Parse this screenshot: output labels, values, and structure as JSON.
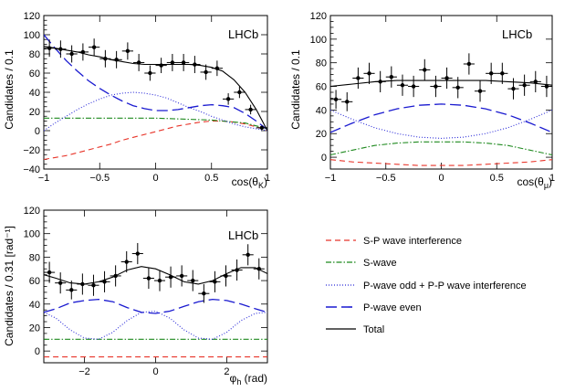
{
  "colors": {
    "sp_interference": "#e8352a",
    "s_wave": "#1f8a1f",
    "p_odd": "#2a2ad8",
    "p_even": "#1a1ad0",
    "total": "#000000",
    "data": "#000000"
  },
  "legend": {
    "sp": "S-P wave interference",
    "s": "S-wave",
    "podd": "P-wave odd + P-P wave interference",
    "peven": "P-wave even",
    "total": "Total"
  },
  "chart_data": [
    {
      "type": "line",
      "id": "costhetaK",
      "experiment_label": "LHCb",
      "ylabel": "Candidates / 0.1",
      "xlabel_main": "cos(θ",
      "xlabel_sub": "K",
      "xlabel_end": ")",
      "xlim": [
        -1,
        1
      ],
      "ylim": [
        -40,
        120
      ],
      "xticks": [
        -1,
        -0.5,
        0,
        0.5,
        1
      ],
      "xtick_labels": [
        "−1",
        "−0.5",
        "0",
        "0.5",
        "1"
      ],
      "yticks": [
        -40,
        -20,
        0,
        20,
        40,
        60,
        80,
        100,
        120
      ],
      "ytick_labels": [
        "−40",
        "−20",
        "0",
        "20",
        "40",
        "60",
        "80",
        "100",
        "120"
      ],
      "points": {
        "x": [
          -0.95,
          -0.85,
          -0.75,
          -0.65,
          -0.55,
          -0.45,
          -0.35,
          -0.25,
          -0.15,
          -0.05,
          0.05,
          0.15,
          0.25,
          0.35,
          0.45,
          0.55,
          0.65,
          0.75,
          0.85,
          0.95
        ],
        "y": [
          86,
          85,
          80,
          82,
          87,
          75,
          74,
          83,
          71,
          60,
          68,
          71,
          71,
          69,
          61,
          65,
          33,
          40,
          22,
          3
        ],
        "err": [
          9,
          9,
          9,
          9,
          9,
          9,
          9,
          9,
          9,
          8,
          8,
          9,
          9,
          9,
          8,
          8,
          6,
          6,
          5,
          2
        ]
      },
      "series": [
        {
          "name": "Total",
          "style": "total",
          "x": [
            -1,
            -0.9,
            -0.8,
            -0.7,
            -0.6,
            -0.5,
            -0.4,
            -0.3,
            -0.2,
            -0.1,
            0,
            0.1,
            0.2,
            0.3,
            0.4,
            0.5,
            0.6,
            0.7,
            0.8,
            0.9,
            1
          ],
          "y": [
            88,
            86,
            84,
            82,
            79,
            77,
            74,
            72,
            70,
            69,
            69,
            69,
            69,
            69,
            68,
            66,
            62,
            53,
            40,
            22,
            0
          ]
        },
        {
          "name": "P-wave even",
          "style": "peven",
          "x": [
            -1,
            -0.9,
            -0.8,
            -0.7,
            -0.6,
            -0.5,
            -0.4,
            -0.3,
            -0.2,
            -0.1,
            0,
            0.1,
            0.2,
            0.3,
            0.4,
            0.5,
            0.6,
            0.7,
            0.8,
            0.9,
            1
          ],
          "y": [
            100,
            86,
            73,
            62,
            52,
            44,
            37,
            31,
            26,
            23,
            21,
            21,
            22,
            24,
            26,
            27,
            26,
            24,
            18,
            10,
            1
          ]
        },
        {
          "name": "P-wave odd + P-P wave interference",
          "style": "podd",
          "x": [
            -1,
            -0.9,
            -0.8,
            -0.7,
            -0.6,
            -0.5,
            -0.4,
            -0.3,
            -0.2,
            -0.1,
            0,
            0.1,
            0.2,
            0.3,
            0.4,
            0.5,
            0.6,
            0.7,
            0.8,
            0.9,
            1
          ],
          "y": [
            0,
            8,
            15,
            22,
            28,
            33,
            37,
            39,
            40,
            39,
            37,
            34,
            29,
            24,
            20,
            15,
            11,
            7,
            4,
            2,
            0
          ]
        },
        {
          "name": "S-wave",
          "style": "s",
          "x": [
            -1,
            -0.5,
            0,
            0.5,
            0.8,
            1
          ],
          "y": [
            13,
            13,
            13,
            11,
            8,
            2
          ]
        },
        {
          "name": "S-P wave interference",
          "style": "sp",
          "x": [
            -1,
            -0.9,
            -0.8,
            -0.7,
            -0.6,
            -0.5,
            -0.4,
            -0.3,
            -0.2,
            -0.1,
            0,
            0.1,
            0.2,
            0.3,
            0.4,
            0.5,
            0.6,
            0.7,
            0.8,
            0.9,
            1
          ],
          "y": [
            -30,
            -28,
            -26,
            -23,
            -20,
            -17,
            -14,
            -10,
            -7,
            -4,
            -1,
            2,
            5,
            7,
            9,
            10,
            10,
            9,
            7,
            4,
            0
          ]
        }
      ]
    },
    {
      "type": "line",
      "id": "costhetamu",
      "experiment_label": "LHCb",
      "ylabel": "Candidates / 0.1",
      "xlabel_main": "cos(θ",
      "xlabel_sub": "μ",
      "xlabel_end": ")",
      "xlim": [
        -1,
        1
      ],
      "ylim": [
        -10,
        120
      ],
      "xticks": [
        -1,
        -0.5,
        0,
        0.5,
        1
      ],
      "xtick_labels": [
        "−1",
        "−0.5",
        "0",
        "0.5",
        "1"
      ],
      "yticks": [
        0,
        20,
        40,
        60,
        80,
        100,
        120
      ],
      "ytick_labels": [
        "0",
        "20",
        "40",
        "60",
        "80",
        "100",
        "120"
      ],
      "points": {
        "x": [
          -0.95,
          -0.85,
          -0.75,
          -0.65,
          -0.55,
          -0.45,
          -0.35,
          -0.25,
          -0.15,
          -0.05,
          0.05,
          0.15,
          0.25,
          0.35,
          0.45,
          0.55,
          0.65,
          0.75,
          0.85,
          0.95
        ],
        "y": [
          49,
          47,
          67,
          71,
          64,
          68,
          61,
          60,
          74,
          60,
          67,
          59,
          79,
          56,
          71,
          71,
          58,
          61,
          64,
          60
        ],
        "err": [
          8,
          8,
          9,
          9,
          9,
          9,
          9,
          9,
          9,
          9,
          9,
          9,
          9,
          9,
          9,
          9,
          9,
          9,
          9,
          9
        ]
      },
      "series": [
        {
          "name": "Total",
          "style": "total",
          "x": [
            -1,
            -0.8,
            -0.6,
            -0.4,
            -0.2,
            0,
            0.2,
            0.4,
            0.6,
            0.8,
            1
          ],
          "y": [
            60,
            62,
            64,
            65,
            65,
            65,
            65,
            65,
            64,
            63,
            61
          ]
        },
        {
          "name": "P-wave even",
          "style": "peven",
          "x": [
            -1,
            -0.8,
            -0.6,
            -0.4,
            -0.2,
            0,
            0.2,
            0.4,
            0.6,
            0.8,
            1
          ],
          "y": [
            21,
            29,
            36,
            41,
            44,
            45,
            44,
            41,
            36,
            29,
            21
          ]
        },
        {
          "name": "P-wave odd + P-P wave interference",
          "style": "podd",
          "x": [
            -1,
            -0.8,
            -0.6,
            -0.4,
            -0.2,
            0,
            0.2,
            0.4,
            0.6,
            0.8,
            1
          ],
          "y": [
            40,
            32,
            25,
            20,
            17,
            16,
            17,
            20,
            25,
            32,
            40
          ]
        },
        {
          "name": "S-wave",
          "style": "s",
          "x": [
            -1,
            -0.8,
            -0.6,
            -0.4,
            -0.2,
            0,
            0.2,
            0.4,
            0.6,
            0.8,
            1
          ],
          "y": [
            2,
            6,
            10,
            12,
            13,
            13,
            13,
            12,
            10,
            6,
            2
          ]
        },
        {
          "name": "S-P wave interference",
          "style": "sp",
          "x": [
            -1,
            -0.8,
            -0.6,
            -0.4,
            -0.2,
            0,
            0.2,
            0.4,
            0.6,
            0.8,
            1
          ],
          "y": [
            -2,
            -4,
            -5,
            -6,
            -7,
            -7,
            -7,
            -6,
            -5,
            -4,
            -2
          ]
        }
      ]
    },
    {
      "type": "line",
      "id": "phih",
      "experiment_label": "LHCb",
      "ylabel": "Candidates / 0.31 [rad⁻¹]",
      "xlabel_main": "φ",
      "xlabel_sub": "h",
      "xlabel_end": " (rad)",
      "xlim": [
        -3.14159,
        3.14159
      ],
      "ylim": [
        -10,
        120
      ],
      "xticks": [
        -2,
        0,
        2
      ],
      "xtick_labels": [
        "−2",
        "0",
        "2"
      ],
      "yticks": [
        0,
        20,
        40,
        60,
        80,
        100,
        120
      ],
      "ytick_labels": [
        "0",
        "20",
        "40",
        "60",
        "80",
        "100",
        "120"
      ],
      "points": {
        "x": [
          -2.985,
          -2.675,
          -2.365,
          -2.055,
          -1.745,
          -1.435,
          -1.125,
          -0.815,
          -0.505,
          -0.195,
          0.115,
          0.425,
          0.735,
          1.045,
          1.355,
          1.665,
          1.975,
          2.285,
          2.595,
          2.905
        ],
        "y": [
          67,
          58,
          52,
          57,
          56,
          59,
          64,
          76,
          83,
          62,
          60,
          63,
          64,
          60,
          49,
          59,
          64,
          69,
          82,
          70
        ],
        "err": [
          9,
          9,
          8,
          9,
          9,
          9,
          9,
          9,
          9,
          9,
          9,
          9,
          9,
          9,
          8,
          9,
          9,
          9,
          9,
          9
        ]
      },
      "series": [
        {
          "name": "Total",
          "style": "total",
          "x": [
            -3.14,
            -2.8,
            -2.4,
            -2.0,
            -1.6,
            -1.2,
            -0.8,
            -0.4,
            0.0,
            0.4,
            0.8,
            1.2,
            1.6,
            2.0,
            2.4,
            2.8,
            3.14
          ],
          "y": [
            65,
            62,
            58,
            57,
            59,
            63,
            69,
            72,
            70,
            65,
            59,
            57,
            60,
            66,
            71,
            71,
            66
          ]
        },
        {
          "name": "P-wave even",
          "style": "peven",
          "x": [
            -3.14,
            -2.8,
            -2.4,
            -2.0,
            -1.6,
            -1.2,
            -0.8,
            -0.4,
            0.0,
            0.4,
            0.8,
            1.2,
            1.6,
            2.0,
            2.4,
            2.8,
            3.14
          ],
          "y": [
            33,
            36,
            41,
            43,
            44,
            42,
            37,
            33,
            32,
            34,
            38,
            42,
            44,
            43,
            40,
            36,
            33
          ]
        },
        {
          "name": "P-wave odd + P-P wave interference",
          "style": "podd",
          "x": [
            -3.14,
            -2.8,
            -2.4,
            -2.0,
            -1.6,
            -1.2,
            -0.8,
            -0.4,
            0.0,
            0.4,
            0.8,
            1.2,
            1.6,
            2.0,
            2.4,
            2.8,
            3.14
          ],
          "y": [
            33,
            28,
            18,
            11,
            10,
            16,
            26,
            33,
            34,
            28,
            18,
            11,
            10,
            16,
            26,
            32,
            33
          ]
        },
        {
          "name": "S-wave",
          "style": "s",
          "x": [
            -3.14,
            3.14
          ],
          "y": [
            10,
            10
          ]
        },
        {
          "name": "S-P wave interference",
          "style": "sp",
          "x": [
            -3.14,
            3.14
          ],
          "y": [
            -5,
            -5
          ]
        }
      ]
    }
  ]
}
